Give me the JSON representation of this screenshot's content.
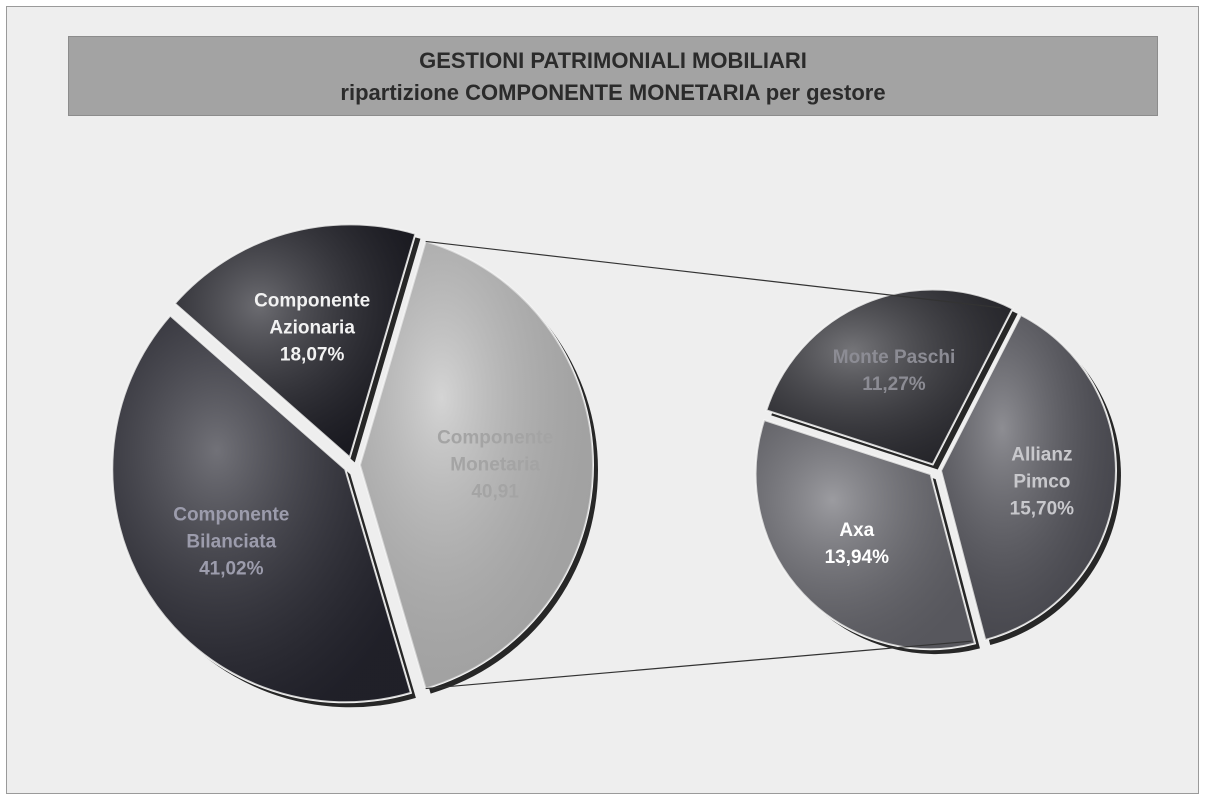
{
  "chart_data": [
    {
      "type": "pie",
      "title": "GESTIONI PATRIMONIALI MOBILIARI",
      "subtitle": "ripartizione COMPONENTE MONETARIA  per gestore",
      "categories": [
        "Componente Monetaria",
        "Componente Bilanciata",
        "Componente Azionaria"
      ],
      "values": [
        40.91,
        41.02,
        18.07
      ],
      "value_labels": [
        "40,91",
        "41,02%",
        "18,07%"
      ],
      "colors": [
        "#bdbdbd",
        "#25252f",
        "#1c1c24"
      ]
    },
    {
      "type": "pie",
      "categories": [
        "Monte Paschi",
        "Allianz Pimco",
        "Axa"
      ],
      "values": [
        11.27,
        15.7,
        13.94
      ],
      "value_labels": [
        "11,27%",
        "15,70%",
        "13,94%"
      ],
      "colors": [
        "#2a2a30",
        "#505058",
        "#66666d"
      ]
    }
  ]
}
